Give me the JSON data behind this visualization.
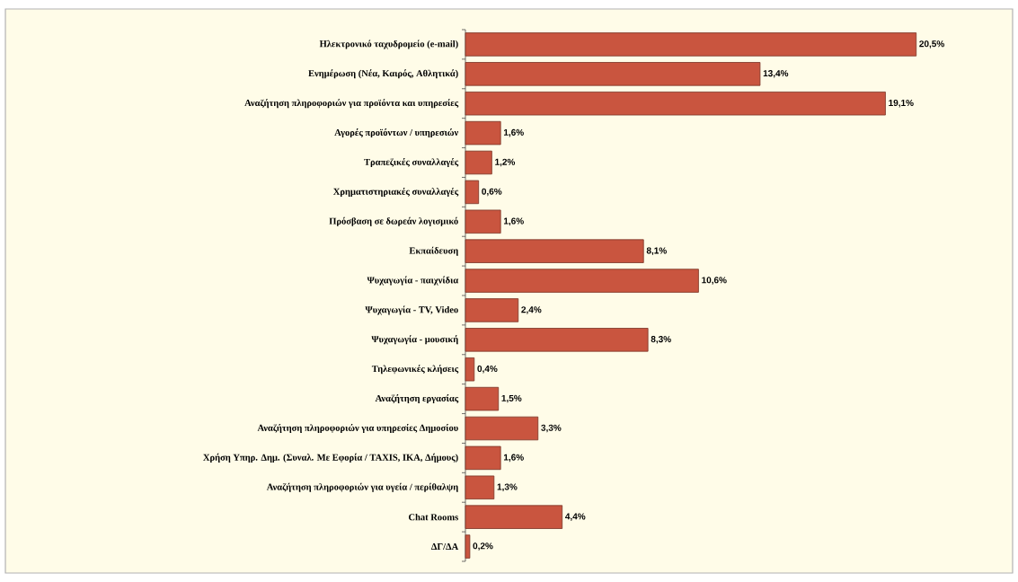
{
  "chart_data": {
    "type": "bar",
    "orientation": "horizontal",
    "color": "#c9553f",
    "categories": [
      "Ηλεκτρονικό ταχυδρομείο (e-mail)",
      "Ενημέρωση (Νέα, Καιρός, Αθλητικά)",
      "Αναζήτηση πληροφοριών για προϊόντα και υπηρεσίες",
      "Αγορές προϊόντων / υπηρεσιών",
      "Τραπεζικές συναλλαγές",
      "Χρηματιστηριακές συναλλαγές",
      "Πρόσβαση σε δωρεάν λογισμικό",
      "Εκπαίδευση",
      "Ψυχαγωγία - παιχνίδια",
      "Ψυχαγωγία - TV, Video",
      "Ψυχαγωγία - μουσική",
      "Τηλεφωνικές κλήσεις",
      "Αναζήτηση εργασίας",
      "Αναζήτηση πληροφοριών για υπηρεσίες Δημοσίου",
      "Χρήση Υπηρ. Δημ. (Συναλ. Με Εφορία / TAXIS, ΙΚΑ, Δήμους)",
      "Αναζήτηση πληροφοριών για υγεία / περίθαλψη",
      "Chat Rooms",
      "ΔΓ/ΔΑ"
    ],
    "values": [
      20.5,
      13.4,
      19.1,
      1.6,
      1.2,
      0.6,
      1.6,
      8.1,
      10.6,
      2.4,
      8.3,
      0.4,
      1.5,
      3.3,
      1.6,
      1.3,
      4.4,
      0.2
    ],
    "value_labels": [
      "20,5%",
      "13,4%",
      "19,1%",
      "1,6%",
      "1,2%",
      "0,6%",
      "1,6%",
      "8,1%",
      "10,6%",
      "2,4%",
      "8,3%",
      "0,4%",
      "1,5%",
      "3,3%",
      "1,6%",
      "1,3%",
      "4,4%",
      "0,2%"
    ]
  }
}
